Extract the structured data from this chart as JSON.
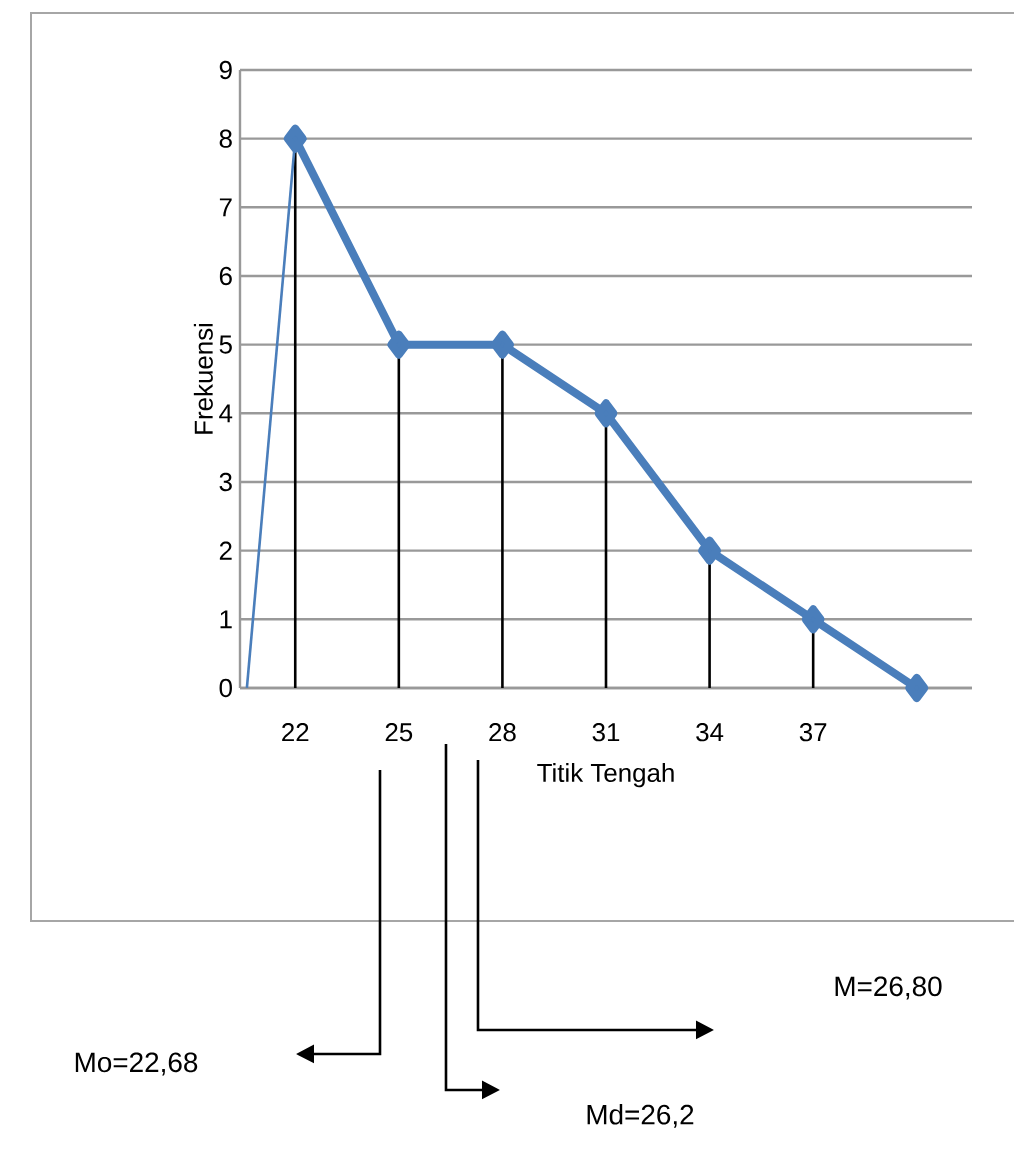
{
  "chart_data": {
    "type": "line",
    "xlabel": "Titik Tengah",
    "ylabel": "Frekuensi",
    "series": [
      {
        "color": "#4a7ebb",
        "x": [
          22,
          25,
          28,
          31,
          34,
          37,
          40
        ],
        "values": [
          8,
          5,
          5,
          4,
          2,
          1,
          0
        ],
        "marker": "diamond",
        "errors": [
          [
            0,
            8
          ],
          [
            0,
            5
          ],
          [
            0,
            5
          ],
          [
            0,
            4
          ],
          [
            0,
            2
          ],
          [
            0,
            1
          ],
          null
        ]
      },
      {
        "color": "#4a7ebb",
        "x": [
          20.6,
          22
        ],
        "values": [
          0,
          8
        ],
        "marker": "none"
      }
    ],
    "xlim": [
      20.4,
      41.6
    ],
    "xticks": [
      22,
      25,
      28,
      31,
      34,
      37
    ],
    "ylim": [
      0,
      9
    ],
    "yticks": [
      0,
      1,
      2,
      3,
      4,
      5,
      6,
      7,
      8,
      9
    ],
    "grid": "y",
    "line_style": "solid",
    "annotations": [
      "M=26,80",
      "Mo=22,68",
      "Md=26,2"
    ]
  }
}
